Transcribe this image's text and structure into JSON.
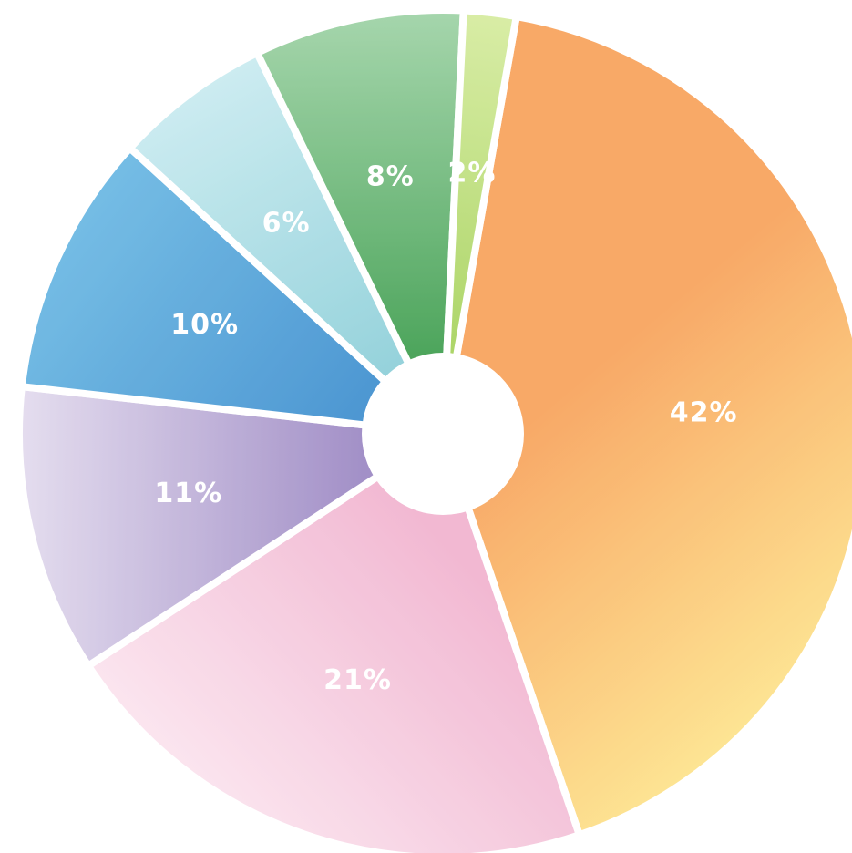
{
  "chart_data": {
    "type": "pie",
    "style": "donut",
    "title": "",
    "labels_format": "percent",
    "slices": [
      {
        "value": 42,
        "label": "42%",
        "color": "#f8a25b",
        "color_light": "#fde28a",
        "name_id": "orange"
      },
      {
        "value": 21,
        "label": "21%",
        "color": "#f1b3cf",
        "color_light": "#fbe3ee",
        "name_id": "pink"
      },
      {
        "value": 11,
        "label": "11%",
        "color": "#9b87c3",
        "color_light": "#e3dbee",
        "name_id": "purple"
      },
      {
        "value": 10,
        "label": "10%",
        "color": "#3f8fcf",
        "color_light": "#6ab8e3",
        "name_id": "blue"
      },
      {
        "value": 6,
        "label": "6%",
        "color": "#8dcfd9",
        "color_light": "#c9ebf0",
        "name_id": "light-blue"
      },
      {
        "value": 8,
        "label": "8%",
        "color": "#3f9e4f",
        "color_light": "#9fd3a6",
        "name_id": "green"
      },
      {
        "value": 2,
        "label": "2%",
        "color": "#a6d25c",
        "color_light": "#d6ec9f",
        "name_id": "light-green"
      }
    ]
  }
}
